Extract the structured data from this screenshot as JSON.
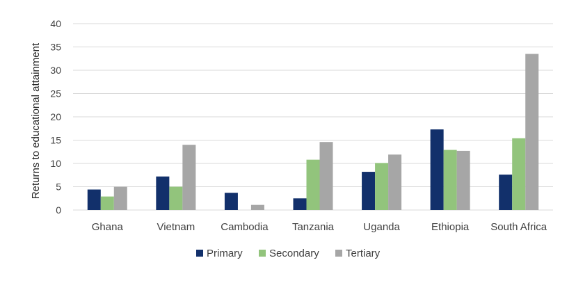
{
  "chart_data": {
    "type": "bar",
    "title": "",
    "xlabel": "",
    "ylabel": "Returns to  educational attainment",
    "ylim": [
      0,
      40
    ],
    "yticks": [
      0,
      5,
      10,
      15,
      20,
      25,
      30,
      35,
      40
    ],
    "grid": true,
    "legend_position": "bottom",
    "categories": [
      "Ghana",
      "Vietnam",
      "Cambodia",
      "Tanzania",
      "Uganda",
      "Ethiopia",
      "South Africa"
    ],
    "series": [
      {
        "name": "Primary",
        "color": "#12306b",
        "values": [
          4.4,
          7.2,
          3.7,
          2.5,
          8.2,
          17.3,
          7.6
        ]
      },
      {
        "name": "Secondary",
        "color": "#92c47c",
        "values": [
          2.9,
          5.0,
          0.0,
          10.8,
          10.1,
          12.9,
          15.4
        ]
      },
      {
        "name": "Tertiary",
        "color": "#a6a6a6",
        "values": [
          5.0,
          14.0,
          1.1,
          14.6,
          11.9,
          12.7,
          33.5
        ]
      }
    ]
  }
}
